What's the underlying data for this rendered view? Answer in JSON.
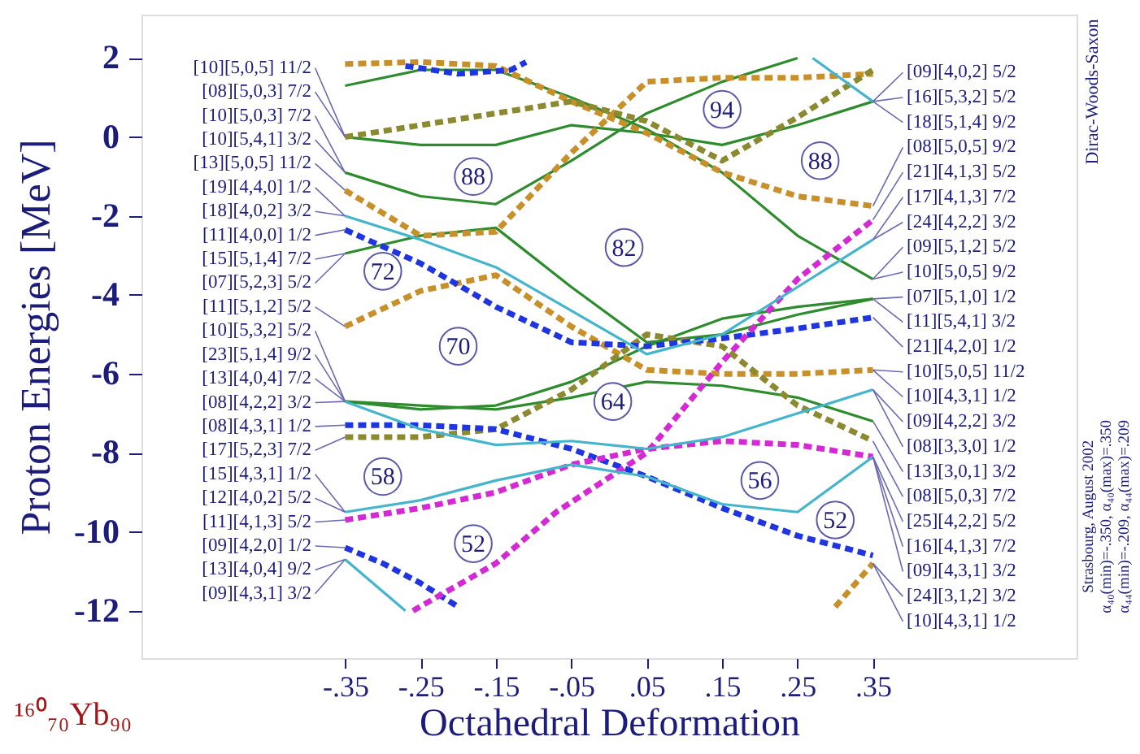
{
  "chart_data": {
    "type": "line",
    "xlabel": "Octahedral Deformation",
    "ylabel": "Proton Energies [MeV]",
    "xlim": [
      -0.62,
      0.62
    ],
    "ylim": [
      -13.2,
      3.1
    ],
    "xticks": [
      {
        "value": -0.35,
        "label": "-.35"
      },
      {
        "value": -0.25,
        "label": "-.25"
      },
      {
        "value": -0.15,
        "label": "-.15"
      },
      {
        "value": -0.05,
        "label": "-.05"
      },
      {
        "value": 0.05,
        "label": ".05"
      },
      {
        "value": 0.15,
        "label": ".15"
      },
      {
        "value": 0.25,
        "label": ".25"
      },
      {
        "value": 0.35,
        "label": ".35"
      }
    ],
    "yticks": [
      2,
      0,
      -2,
      -4,
      -6,
      -8,
      -10,
      -12
    ],
    "grid": false,
    "x": [
      -0.35,
      -0.25,
      -0.15,
      -0.05,
      0.05,
      0.15,
      0.25,
      0.35
    ],
    "series": [
      {
        "color": "#2e8b2e",
        "line_style": "solid",
        "values": [
          1.3,
          1.7,
          1.7,
          1.0,
          0.2,
          -0.9,
          -2.5,
          -3.6
        ]
      },
      {
        "color": "#2e8b2e",
        "line_style": "solid",
        "values": [
          0,
          -0.2,
          -0.2,
          0.3,
          0.1,
          -0.2,
          0.3,
          0.9
        ]
      },
      {
        "color": "#2e8b2e",
        "line_style": "solid",
        "values": [
          -0.9,
          -1.5,
          -1.7,
          -0.6,
          0.6,
          1.4,
          2.0,
          null
        ]
      },
      {
        "color": "#2e8b2e",
        "line_style": "solid",
        "values": [
          -2.95,
          -2.5,
          -2.3,
          -3.8,
          -5.2,
          -5.0,
          -4.5,
          -4.1
        ]
      },
      {
        "color": "#2e8b2e",
        "line_style": "solid",
        "values": [
          -6.7,
          -6.9,
          -6.8,
          -6.2,
          -5.3,
          -4.6,
          -4.3,
          -4.1
        ]
      },
      {
        "color": "#2e8b2e",
        "line_style": "solid",
        "values": [
          -6.7,
          -6.8,
          -6.9,
          -6.6,
          -6.2,
          -6.3,
          -6.6,
          -7.2
        ]
      },
      {
        "color": "#c8902a",
        "line_style": "dashed",
        "values": [
          1.85,
          1.9,
          1.8,
          0.9,
          0.1,
          -0.9,
          -1.5,
          -1.75
        ]
      },
      {
        "color": "#c8902a",
        "line_style": "dashed",
        "values": [
          -1.35,
          -2.5,
          -2.4,
          -0.4,
          1.4,
          1.5,
          1.5,
          1.6
        ]
      },
      {
        "color": "#8c8a30",
        "line_style": "dashed",
        "values": [
          0,
          0.3,
          0.6,
          0.9,
          0.4,
          -0.6,
          0.5,
          1.7
        ]
      },
      {
        "color": "#c8902a",
        "line_style": "dashed",
        "values": [
          -4.8,
          -3.9,
          -3.5,
          -4.8,
          -5.9,
          -6.0,
          -6.0,
          -5.9
        ]
      },
      {
        "color": "#8c8a30",
        "line_style": "dashed",
        "values": [
          -7.6,
          -7.6,
          -7.4,
          -6.4,
          -5.0,
          -5.3,
          -6.8,
          -7.7
        ]
      },
      {
        "color": "#c8902a",
        "line_style": "dashed",
        "x": [
          0.3,
          0.35
        ],
        "values": [
          -11.9,
          -10.8
        ]
      },
      {
        "color": "#1f35e0",
        "line_style": "dashed",
        "x": [
          -0.27,
          -0.2,
          -0.13,
          -0.11
        ],
        "values": [
          1.8,
          1.6,
          1.7,
          1.9
        ]
      },
      {
        "color": "#1f35e0",
        "line_style": "dashed",
        "values": [
          -2.35,
          -3.2,
          -4.3,
          -5.2,
          -5.3,
          -5.1,
          -4.85,
          -4.57
        ]
      },
      {
        "color": "#1f35e0",
        "line_style": "dashed",
        "values": [
          -7.3,
          -7.3,
          -7.4,
          -7.9,
          -8.6,
          -9.4,
          -10.1,
          -10.6
        ]
      },
      {
        "color": "#1f35e0",
        "line_style": "dashed",
        "x": [
          -0.35,
          -0.3,
          -0.25,
          -0.2
        ],
        "values": [
          -10.4,
          -10.8,
          -11.3,
          -11.9
        ]
      },
      {
        "color": "#d42ad4",
        "line_style": "dashed",
        "values": [
          -9.7,
          -9.4,
          -9.0,
          -8.3,
          -7.9,
          -7.7,
          -7.8,
          -8.1
        ]
      },
      {
        "color": "#d42ad4",
        "line_style": "dashed",
        "x": [
          -0.26,
          -0.15,
          -0.07,
          0.05,
          0.15,
          0.25,
          0.35
        ],
        "values": [
          -12.0,
          -10.8,
          -9.5,
          -8.0,
          -5.7,
          -3.6,
          -2.1
        ]
      },
      {
        "color": "#45b5cc",
        "line_style": "solid",
        "values": [
          -2.0,
          -2.6,
          -3.3,
          -4.4,
          -5.5,
          -5.0,
          -3.8,
          -2.6
        ]
      },
      {
        "color": "#45b5cc",
        "line_style": "solid",
        "values": [
          -6.7,
          -7.4,
          -7.8,
          -7.7,
          -7.9,
          -7.6,
          -7.0,
          -6.4
        ]
      },
      {
        "color": "#45b5cc",
        "line_style": "solid",
        "values": [
          -9.5,
          -9.2,
          -8.7,
          -8.3,
          -8.6,
          -9.3,
          -9.5,
          -8.1
        ]
      },
      {
        "color": "#45b5cc",
        "line_style": "solid",
        "x": [
          -0.35,
          -0.27
        ],
        "values": [
          -10.7,
          -12.0
        ]
      },
      {
        "color": "#45b5cc",
        "line_style": "solid",
        "x": [
          0.27,
          0.35
        ],
        "values": [
          2.0,
          0.9
        ]
      }
    ],
    "annotations": [
      {
        "text": "88",
        "x": -0.18,
        "y": -1.0
      },
      {
        "text": "72",
        "x": -0.3,
        "y": -3.4
      },
      {
        "text": "70",
        "x": -0.2,
        "y": -5.3
      },
      {
        "text": "82",
        "x": 0.02,
        "y": -2.8
      },
      {
        "text": "94",
        "x": 0.15,
        "y": 0.7
      },
      {
        "text": "88",
        "x": 0.28,
        "y": -0.6
      },
      {
        "text": "64",
        "x": 0.005,
        "y": -6.7
      },
      {
        "text": "58",
        "x": -0.3,
        "y": -8.6
      },
      {
        "text": "52",
        "x": -0.18,
        "y": -10.3
      },
      {
        "text": "56",
        "x": 0.2,
        "y": -8.7
      },
      {
        "text": "52",
        "x": 0.3,
        "y": -9.7
      },
      {
        "text": "[10][5,0,5] 11/2",
        "x": -0.35,
        "y": 0
      },
      {
        "text": "[08][5,0,3] 7/2",
        "x": -0.35,
        "y": 0
      },
      {
        "text": "[10][5,0,3] 7/2",
        "x": -0.35,
        "y": -0.9
      },
      {
        "text": "[10][5,4,1] 3/2",
        "x": -0.35,
        "y": -0.9
      },
      {
        "text": "[13][5,0,5] 11/2",
        "x": -0.35,
        "y": -1.35
      },
      {
        "text": "[19][4,4,0] 1/2",
        "x": -0.35,
        "y": -2.0
      },
      {
        "text": "[18][4,0,2] 3/2",
        "x": -0.35,
        "y": -2.0
      },
      {
        "text": "[11][4,0,0] 1/2",
        "x": -0.35,
        "y": -2.35
      },
      {
        "text": "[15][5,1,4] 7/2",
        "x": -0.35,
        "y": -2.95
      },
      {
        "text": "[07][5,2,3] 5/2",
        "x": -0.35,
        "y": -2.95
      },
      {
        "text": "[11][5,1,2] 5/2",
        "x": -0.35,
        "y": -4.8
      },
      {
        "text": "[10][5,3,2] 5/2",
        "x": -0.35,
        "y": -6.7
      },
      {
        "text": "[23][5,1,4] 9/2",
        "x": -0.35,
        "y": -6.7
      },
      {
        "text": "[13][4,0,4] 7/2",
        "x": -0.35,
        "y": -6.7
      },
      {
        "text": "[08][4,2,2] 3/2",
        "x": -0.35,
        "y": -6.7
      },
      {
        "text": "[08][4,3,1] 1/2",
        "x": -0.35,
        "y": -7.3
      },
      {
        "text": "[17][5,2,3] 7/2",
        "x": -0.35,
        "y": -7.6
      },
      {
        "text": "[15][4,3,1] 1/2",
        "x": -0.35,
        "y": -9.5
      },
      {
        "text": "[12][4,0,2] 5/2",
        "x": -0.35,
        "y": -9.5
      },
      {
        "text": "[11][4,1,3] 5/2",
        "x": -0.35,
        "y": -9.7
      },
      {
        "text": "[09][4,2,0] 1/2",
        "x": -0.35,
        "y": -10.4
      },
      {
        "text": "[13][4,0,4] 9/2",
        "x": -0.35,
        "y": -10.7
      },
      {
        "text": "[09][4,3,1] 3/2",
        "x": -0.35,
        "y": -10.7
      },
      {
        "text": "[09][4,0,2] 5/2",
        "x": 0.35,
        "y": 0.9
      },
      {
        "text": "[16][5,3,2] 5/2",
        "x": 0.35,
        "y": 0.9
      },
      {
        "text": "[18][5,1,4] 9/2",
        "x": 0.35,
        "y": 0.9
      },
      {
        "text": "[08][5,0,5] 9/2",
        "x": 0.35,
        "y": -1.75
      },
      {
        "text": "[21][4,1,3] 5/2",
        "x": 0.35,
        "y": -2.1
      },
      {
        "text": "[17][4,1,3] 7/2",
        "x": 0.35,
        "y": -2.6
      },
      {
        "text": "[24][4,2,2] 3/2",
        "x": 0.35,
        "y": -2.6
      },
      {
        "text": "[09][5,1,2] 5/2",
        "x": 0.35,
        "y": -3.6
      },
      {
        "text": "[10][5,0,5] 9/2",
        "x": 0.35,
        "y": -3.6
      },
      {
        "text": "[07][5,1,0] 1/2",
        "x": 0.35,
        "y": -4.1
      },
      {
        "text": "[11][5,4,1] 3/2",
        "x": 0.35,
        "y": -4.1
      },
      {
        "text": "[21][4,2,0] 1/2",
        "x": 0.35,
        "y": -4.57
      },
      {
        "text": "[10][5,0,5] 11/2",
        "x": 0.35,
        "y": -5.9
      },
      {
        "text": "[10][4,3,1] 1/2",
        "x": 0.35,
        "y": -5.9
      },
      {
        "text": "[09][4,2,2] 3/2",
        "x": 0.35,
        "y": -6.4
      },
      {
        "text": "[08][3,3,0] 1/2",
        "x": 0.35,
        "y": -6.4
      },
      {
        "text": "[13][3,0,1] 3/2",
        "x": 0.35,
        "y": -7.2
      },
      {
        "text": "[08][5,0,3] 7/2",
        "x": 0.35,
        "y": -7.7
      },
      {
        "text": "[25][4,2,2] 5/2",
        "x": 0.35,
        "y": -8.1
      },
      {
        "text": "[16][4,1,3] 7/2",
        "x": 0.35,
        "y": -8.1
      },
      {
        "text": "[09][4,3,1] 3/2",
        "x": 0.35,
        "y": -8.1
      },
      {
        "text": "[24][3,1,2] 3/2",
        "x": 0.35,
        "y": -10.8
      },
      {
        "text": "[10][4,3,1] 1/2",
        "x": 0.35,
        "y": -10.8
      },
      "Dirac-Woods-Saxon",
      "Strasbourg, August 2002",
      "α₄₀(min)=-.350, α₄₀(max)=.350",
      "α₄₄(min)=-.209, α₄₄(max)=.209",
      "¹⁶⁰₇₀Yb₉₀"
    ]
  }
}
